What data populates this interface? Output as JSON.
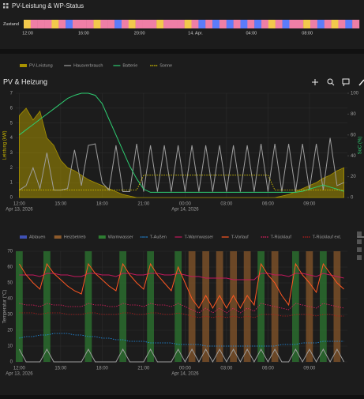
{
  "header": {
    "title": "PV-Leistung & WP-Status"
  },
  "card": {
    "title": "PV & Heizung"
  },
  "chart_data": [
    {
      "type": "timeline",
      "label": "Zustand",
      "categories": [
        "12:00",
        null,
        null,
        null,
        null,
        null,
        null,
        null,
        "16:00",
        null,
        null,
        null,
        null,
        null,
        null,
        null,
        "20:00",
        null,
        null,
        null,
        null,
        null,
        null,
        null,
        "14. Apr.",
        null,
        null,
        null,
        null,
        null,
        null,
        null,
        "04:00",
        null,
        null,
        null,
        null,
        null,
        null,
        null,
        "08:00",
        null,
        null,
        null,
        null,
        null,
        null,
        null
      ],
      "colors": [
        "#f2c94c",
        "#ef7fa6",
        "#ef7fa6",
        "#ef7fa6",
        "#f2c94c",
        "#ef7fa6",
        "#5c7cfa",
        "#ef7fa6",
        "#ef7fa6",
        "#ef7fa6",
        "#f2c94c",
        "#ef7fa6",
        "#ef7fa6",
        "#5c7cfa",
        "#ef7fa6",
        "#f2c94c",
        "#ef7fa6",
        "#ef7fa6",
        "#ef7fa6",
        "#f2c94c",
        "#ef7fa6",
        "#ef7fa6",
        "#ef7fa6",
        "#f2c94c",
        "#ef7fa6",
        "#5c7cfa",
        "#ef7fa6",
        "#5c7cfa",
        "#ef7fa6",
        "#5c7cfa",
        "#ef7fa6",
        "#5c7cfa",
        "#ef7fa6",
        "#5c7cfa",
        "#ef7fa6",
        "#f2c94c",
        "#ef7fa6",
        "#5c7cfa",
        "#ef7fa6",
        "#ef7fa6",
        "#f2c94c",
        "#ef7fa6",
        "#5c7cfa",
        "#ef7fa6",
        "#f2c94c",
        "#ef7fa6",
        "#5c7cfa",
        "#ef7fa6"
      ]
    },
    {
      "type": "line",
      "y_label": "Leistung (kW)",
      "y2_label": "SoC (%)",
      "categories": [
        "12:00",
        null,
        null,
        null,
        null,
        null,
        "15:00",
        null,
        null,
        null,
        null,
        null,
        "18:00",
        null,
        null,
        null,
        null,
        null,
        "21:00",
        null,
        null,
        null,
        null,
        null,
        "00:00",
        null,
        null,
        null,
        null,
        null,
        "03:00",
        null,
        null,
        null,
        null,
        null,
        "06:00",
        null,
        null,
        null,
        null,
        null,
        "09:00",
        null,
        null,
        null,
        null,
        null
      ],
      "category_dates": [
        "Apr 13, 2026",
        null,
        null,
        null,
        null,
        null,
        null,
        null,
        null,
        null,
        null,
        null,
        null,
        null,
        null,
        null,
        null,
        null,
        null,
        null,
        null,
        null,
        null,
        null,
        "Apr 14, 2026",
        null,
        null,
        null,
        null,
        null,
        null,
        null,
        null,
        null,
        null,
        null,
        null,
        null,
        null,
        null,
        null,
        null,
        null,
        null,
        null,
        null,
        null,
        null
      ],
      "ylim": [
        0,
        7
      ],
      "yticks": [
        0,
        1,
        2,
        3,
        4,
        5,
        6,
        7
      ],
      "y2lim": [
        0,
        100
      ],
      "y2ticks": [
        0,
        20,
        40,
        60,
        80,
        100
      ],
      "grid": true,
      "series": [
        {
          "name": "PV-Leistung",
          "color": "#a89200",
          "style": "area",
          "values": [
            5.5,
            6.0,
            5.2,
            5.8,
            4.0,
            3.5,
            2.5,
            2.0,
            1.8,
            1.5,
            1.2,
            1.0,
            0.8,
            0.6,
            0.4,
            0.2,
            0.1,
            0,
            0,
            0,
            0,
            0,
            0,
            0,
            0,
            0,
            0,
            0,
            0,
            0,
            0,
            0,
            0,
            0,
            0,
            0,
            0,
            0,
            0.1,
            0.2,
            0.4,
            0.6,
            0.8,
            1.0,
            1.3,
            1.5,
            1.8,
            2.0
          ]
        },
        {
          "name": "Hausverbrauch",
          "color": "#9e9e9e",
          "style": "line",
          "values": [
            0.5,
            0.8,
            2.0,
            0.6,
            3.0,
            0.5,
            0.5,
            0.6,
            3.2,
            0.8,
            3.5,
            3.6,
            1.0,
            0.5,
            3.5,
            0.4,
            0.4,
            3.6,
            0.4,
            3.5,
            0.4,
            3.5,
            0.4,
            3.5,
            0.4,
            3.5,
            0.4,
            3.5,
            0.4,
            3.5,
            0.4,
            3.5,
            0.4,
            3.5,
            0.4,
            3.6,
            0.4,
            3.6,
            0.4,
            3.6,
            0.4,
            3.6,
            0.5,
            3.6,
            0.5,
            4.0,
            0.8,
            1.0
          ]
        },
        {
          "name": "Batterie",
          "color": "#2ecc71",
          "style": "line",
          "axis": "y2",
          "values": [
            60,
            65,
            70,
            75,
            80,
            85,
            90,
            95,
            98,
            100,
            100,
            98,
            90,
            75,
            60,
            45,
            30,
            18,
            8,
            5,
            5,
            5,
            5,
            5,
            5,
            5,
            5,
            5,
            5,
            5,
            5,
            5,
            5,
            5,
            5,
            5,
            5,
            5,
            5,
            5,
            5,
            6,
            8,
            10,
            12,
            10,
            8,
            6
          ]
        },
        {
          "name": "Sonne",
          "color": "#e6d300",
          "style": "dotted",
          "values": [
            0.5,
            0.5,
            0.5,
            0.5,
            0.5,
            0.5,
            0.5,
            0.5,
            0.5,
            0.5,
            0.5,
            0.5,
            0.5,
            0.5,
            0.5,
            0.5,
            0.5,
            0.5,
            1.5,
            1.5,
            1.5,
            1.5,
            1.5,
            1.5,
            1.5,
            1.5,
            1.5,
            1.5,
            1.5,
            1.5,
            1.5,
            1.5,
            1.5,
            1.5,
            1.5,
            1.5,
            1.5,
            0.5,
            0.5,
            0.5,
            0.5,
            0.5,
            0.5,
            0.5,
            0.5,
            0.5,
            0.5,
            0.5
          ]
        }
      ]
    },
    {
      "type": "line",
      "y_label": "Temperatur (°C)",
      "categories": [
        "12:00",
        null,
        null,
        null,
        null,
        null,
        "15:00",
        null,
        null,
        null,
        null,
        null,
        "18:00",
        null,
        null,
        null,
        null,
        null,
        "21:00",
        null,
        null,
        null,
        null,
        null,
        "00:00",
        null,
        null,
        null,
        null,
        null,
        "03:00",
        null,
        null,
        null,
        null,
        null,
        "06:00",
        null,
        null,
        null,
        null,
        null,
        "09:00",
        null,
        null,
        null,
        null,
        null
      ],
      "category_dates": [
        "Apr 13, 2026",
        null,
        null,
        null,
        null,
        null,
        null,
        null,
        null,
        null,
        null,
        null,
        null,
        null,
        null,
        null,
        null,
        null,
        null,
        null,
        null,
        null,
        null,
        null,
        "Apr 14, 2026",
        null,
        null,
        null,
        null,
        null,
        null,
        null,
        null,
        null,
        null,
        null,
        null,
        null,
        null,
        null,
        null,
        null,
        null,
        null,
        null,
        null,
        null,
        null
      ],
      "ylim": [
        0,
        70
      ],
      "yticks": [
        0,
        10,
        20,
        30,
        40,
        50,
        60,
        70
      ],
      "grid": true,
      "series": [
        {
          "name": "Abtauen",
          "color": "#3f51b5",
          "style": "band",
          "values": [
            0,
            0,
            0,
            0,
            0,
            0,
            0,
            0,
            0,
            0,
            0,
            0,
            0,
            0,
            0,
            0,
            0,
            0,
            0,
            0,
            0,
            0,
            0,
            0,
            0,
            0,
            0,
            0,
            0,
            0,
            0,
            0,
            0,
            0,
            0,
            0,
            0,
            0,
            0,
            0,
            0,
            0,
            0,
            0,
            0,
            0,
            0,
            0
          ]
        },
        {
          "name": "Heizbetrieb",
          "color": "#8d5a2b",
          "style": "band",
          "values": [
            0,
            0,
            0,
            0,
            0,
            0,
            0,
            0,
            0,
            0,
            0,
            0,
            0,
            0,
            0,
            0,
            0,
            0,
            0,
            0,
            0,
            0,
            0,
            0,
            0,
            1,
            0,
            1,
            0,
            1,
            0,
            1,
            0,
            1,
            0,
            0,
            0,
            1,
            0,
            0,
            0,
            0,
            1,
            0,
            0,
            0,
            1,
            0
          ]
        },
        {
          "name": "Warmwasser",
          "color": "#2e7d32",
          "style": "band",
          "values": [
            1,
            0,
            0,
            0,
            1,
            0,
            0,
            0,
            0,
            0,
            1,
            0,
            0,
            0,
            0,
            1,
            0,
            0,
            0,
            1,
            0,
            0,
            0,
            1,
            0,
            0,
            0,
            0,
            0,
            0,
            0,
            0,
            0,
            0,
            0,
            1,
            0,
            0,
            0,
            0,
            1,
            0,
            0,
            0,
            1,
            0,
            0,
            0
          ]
        },
        {
          "name": "T-Außen",
          "color": "#2196f3",
          "style": "dotted",
          "values": [
            15,
            16,
            16,
            17,
            17,
            18,
            18,
            18,
            17,
            17,
            16,
            16,
            15,
            15,
            14,
            14,
            13,
            13,
            13,
            12,
            12,
            12,
            12,
            11,
            11,
            11,
            11,
            10,
            10,
            10,
            10,
            10,
            10,
            10,
            10,
            10,
            10,
            10,
            11,
            11,
            11,
            12,
            12,
            12,
            13,
            13,
            13,
            13
          ]
        },
        {
          "name": "T-Warmwasser",
          "color": "#c2185b",
          "style": "line",
          "values": [
            55,
            55,
            55,
            54,
            56,
            56,
            55,
            55,
            54,
            54,
            56,
            56,
            55,
            55,
            54,
            56,
            56,
            55,
            55,
            56,
            56,
            55,
            55,
            56,
            55,
            54,
            54,
            53,
            53,
            53,
            53,
            52,
            52,
            52,
            52,
            56,
            56,
            55,
            55,
            54,
            56,
            56,
            55,
            54,
            56,
            55,
            54,
            53
          ]
        },
        {
          "name": "T-Vorlauf",
          "color": "#ff5722",
          "style": "line",
          "values": [
            62,
            55,
            50,
            46,
            62,
            56,
            52,
            48,
            45,
            43,
            62,
            56,
            52,
            48,
            45,
            62,
            55,
            50,
            46,
            62,
            55,
            50,
            45,
            60,
            50,
            40,
            34,
            42,
            34,
            42,
            34,
            42,
            34,
            42,
            36,
            62,
            55,
            50,
            42,
            36,
            62,
            55,
            50,
            44,
            62,
            56,
            50,
            46
          ]
        },
        {
          "name": "T-Rücklauf",
          "color": "#e91e63",
          "style": "dotted",
          "values": [
            37,
            36,
            36,
            35,
            37,
            36,
            36,
            35,
            35,
            35,
            37,
            36,
            36,
            35,
            35,
            37,
            36,
            36,
            35,
            37,
            36,
            36,
            35,
            37,
            35,
            33,
            31,
            34,
            31,
            34,
            31,
            34,
            31,
            34,
            32,
            37,
            36,
            35,
            34,
            33,
            37,
            36,
            35,
            34,
            37,
            36,
            35,
            34
          ]
        },
        {
          "name": "T-Rücklauf ext.",
          "color": "#b71c1c",
          "style": "dotted",
          "values": [
            31,
            31,
            31,
            30,
            31,
            31,
            31,
            30,
            30,
            30,
            31,
            31,
            30,
            30,
            30,
            31,
            31,
            30,
            30,
            31,
            31,
            30,
            30,
            31,
            30,
            29,
            28,
            29,
            28,
            29,
            28,
            29,
            28,
            29,
            28,
            30,
            30,
            30,
            29,
            29,
            30,
            30,
            30,
            29,
            30,
            30,
            29,
            29
          ]
        },
        {
          "name": "WP Status",
          "color": "#9e9e9e",
          "style": "line",
          "values": [
            8,
            0,
            0,
            0,
            8,
            0,
            0,
            0,
            0,
            0,
            8,
            0,
            0,
            0,
            0,
            8,
            0,
            0,
            0,
            8,
            0,
            0,
            0,
            8,
            0,
            8,
            0,
            8,
            0,
            8,
            0,
            8,
            0,
            8,
            0,
            8,
            0,
            8,
            0,
            0,
            8,
            0,
            8,
            0,
            8,
            0,
            8,
            0
          ]
        }
      ]
    }
  ]
}
